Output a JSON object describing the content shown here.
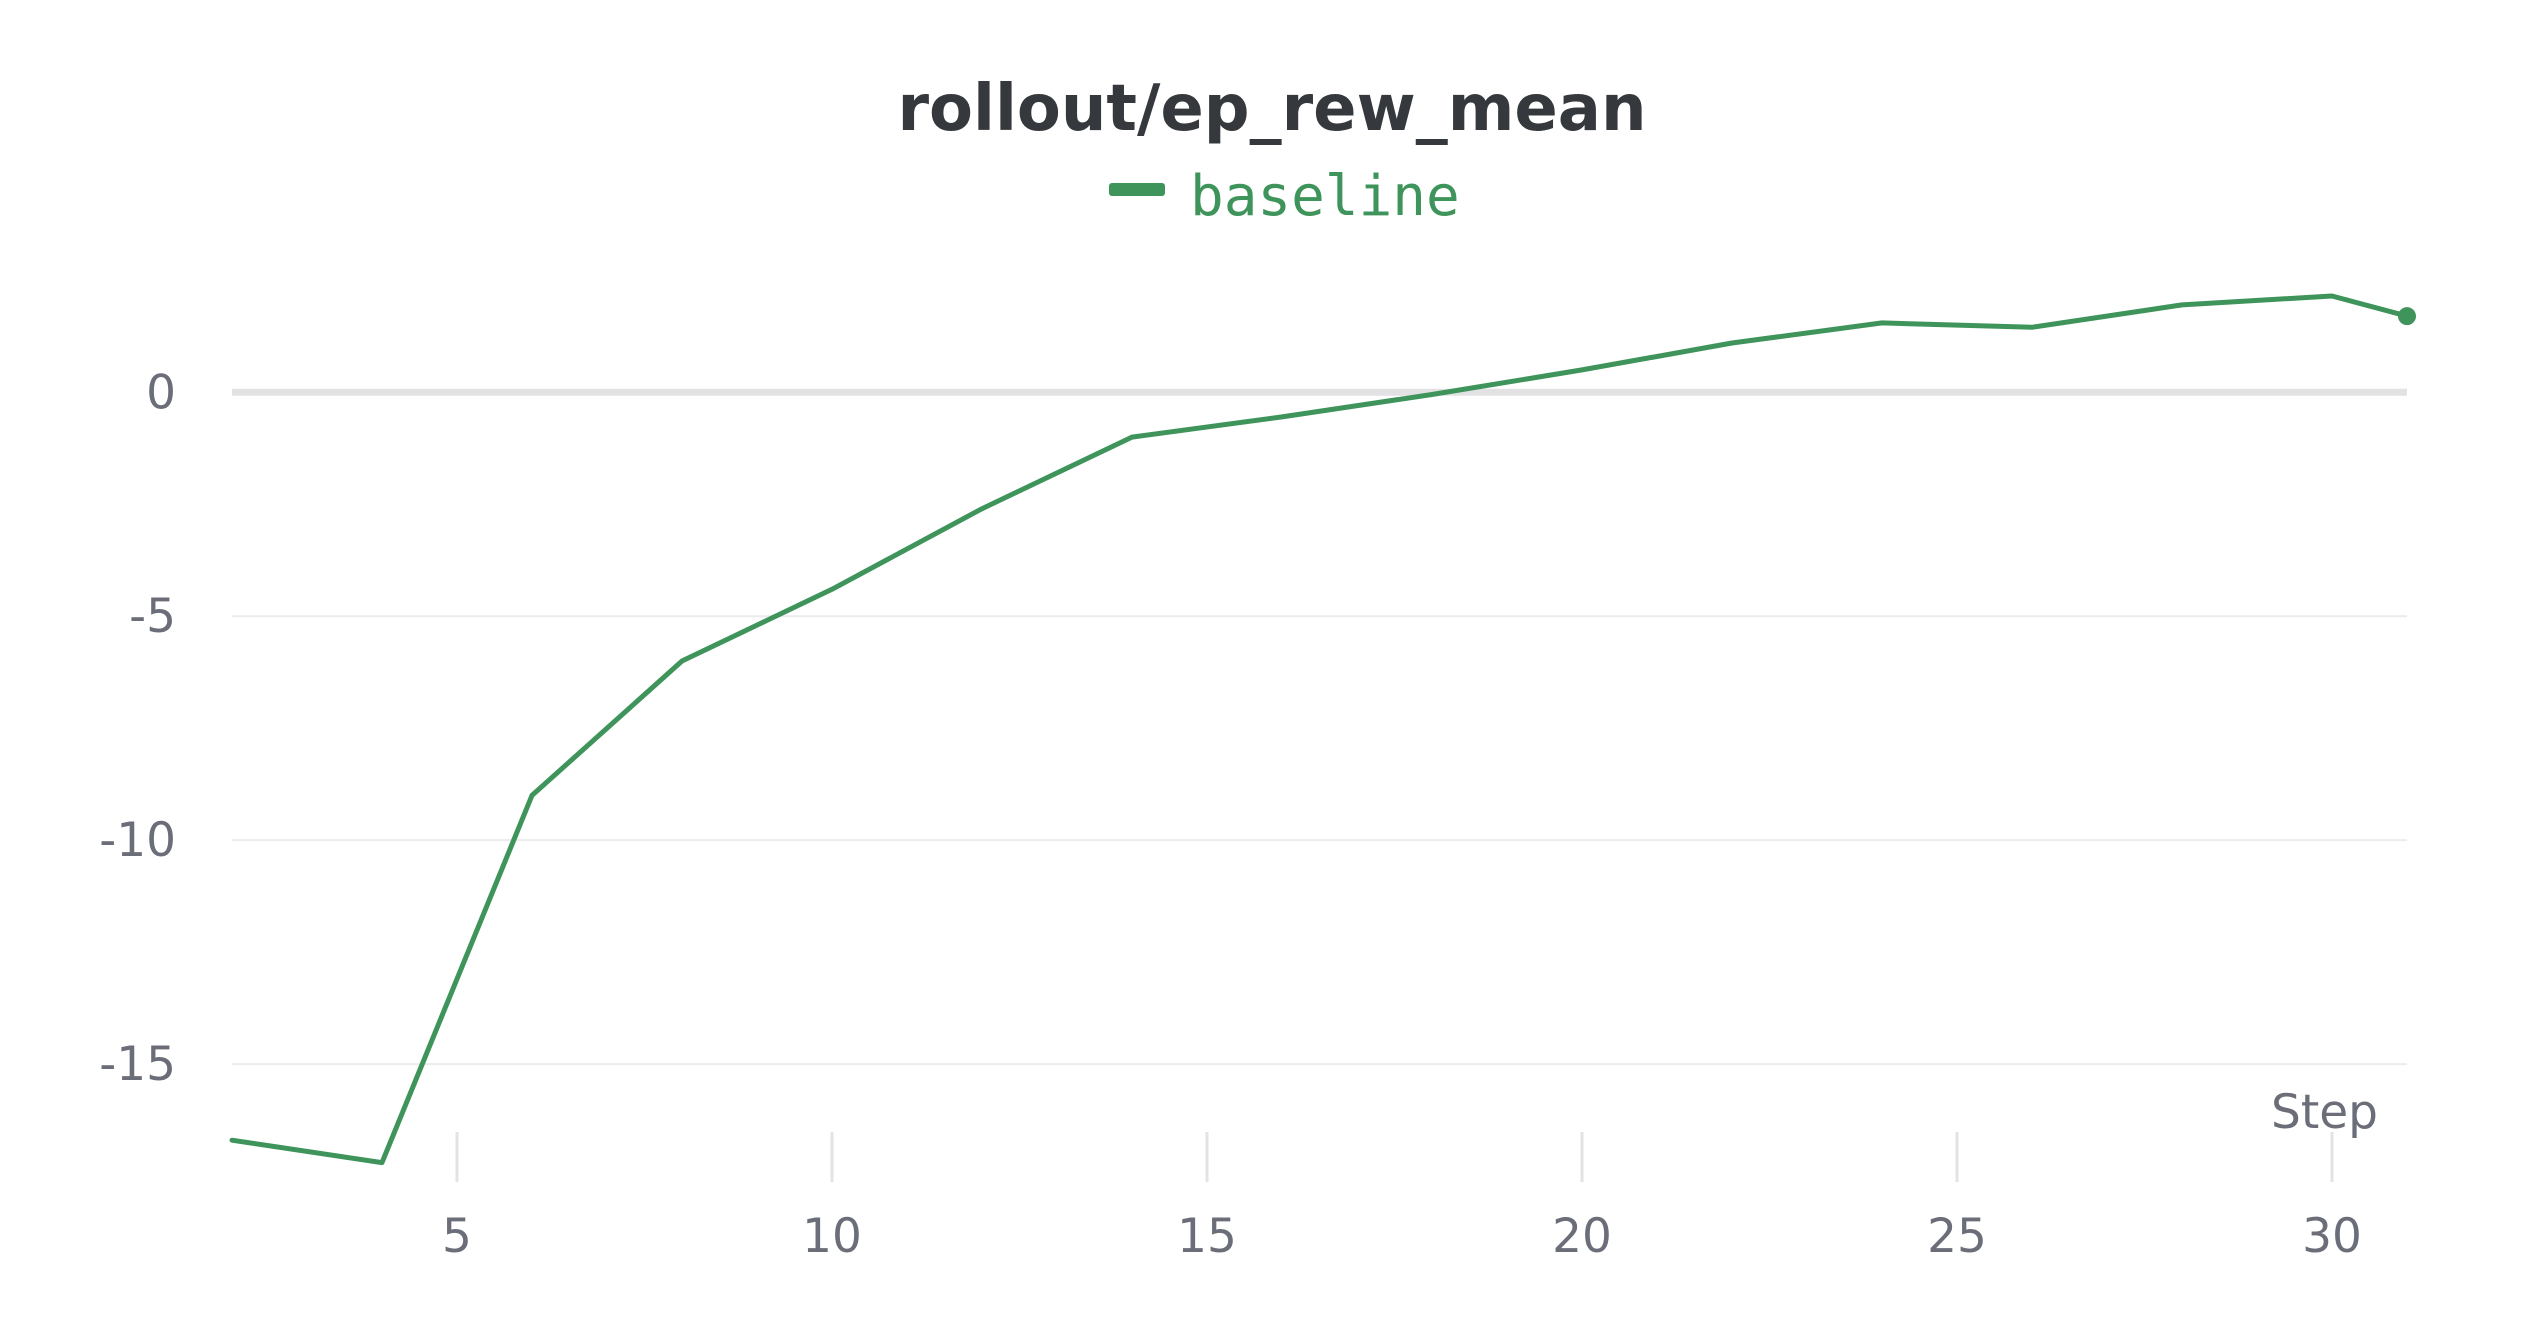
{
  "chart_data": {
    "type": "line",
    "title": "rollout/ep_rew_mean",
    "xlabel": "Step",
    "ylabel": "",
    "xlim": [
      2,
      31
    ],
    "ylim": [
      -17.7,
      3.4
    ],
    "x_ticks": [
      5,
      10,
      15,
      20,
      25,
      30
    ],
    "y_ticks": [
      0,
      -5,
      -10,
      -15
    ],
    "grid": "horizontal",
    "legend_position": "top-center",
    "series": [
      {
        "name": "baseline",
        "color": "#3e945a",
        "x": [
          2,
          4,
          6,
          8,
          10,
          12,
          14,
          16,
          18,
          20,
          22,
          24,
          26,
          28,
          30,
          31
        ],
        "y": [
          -16.7,
          -17.2,
          -9.0,
          -6.0,
          -4.4,
          -2.6,
          -1.0,
          -0.55,
          -0.05,
          0.5,
          1.1,
          1.55,
          1.45,
          1.95,
          2.15,
          1.7
        ]
      }
    ]
  }
}
